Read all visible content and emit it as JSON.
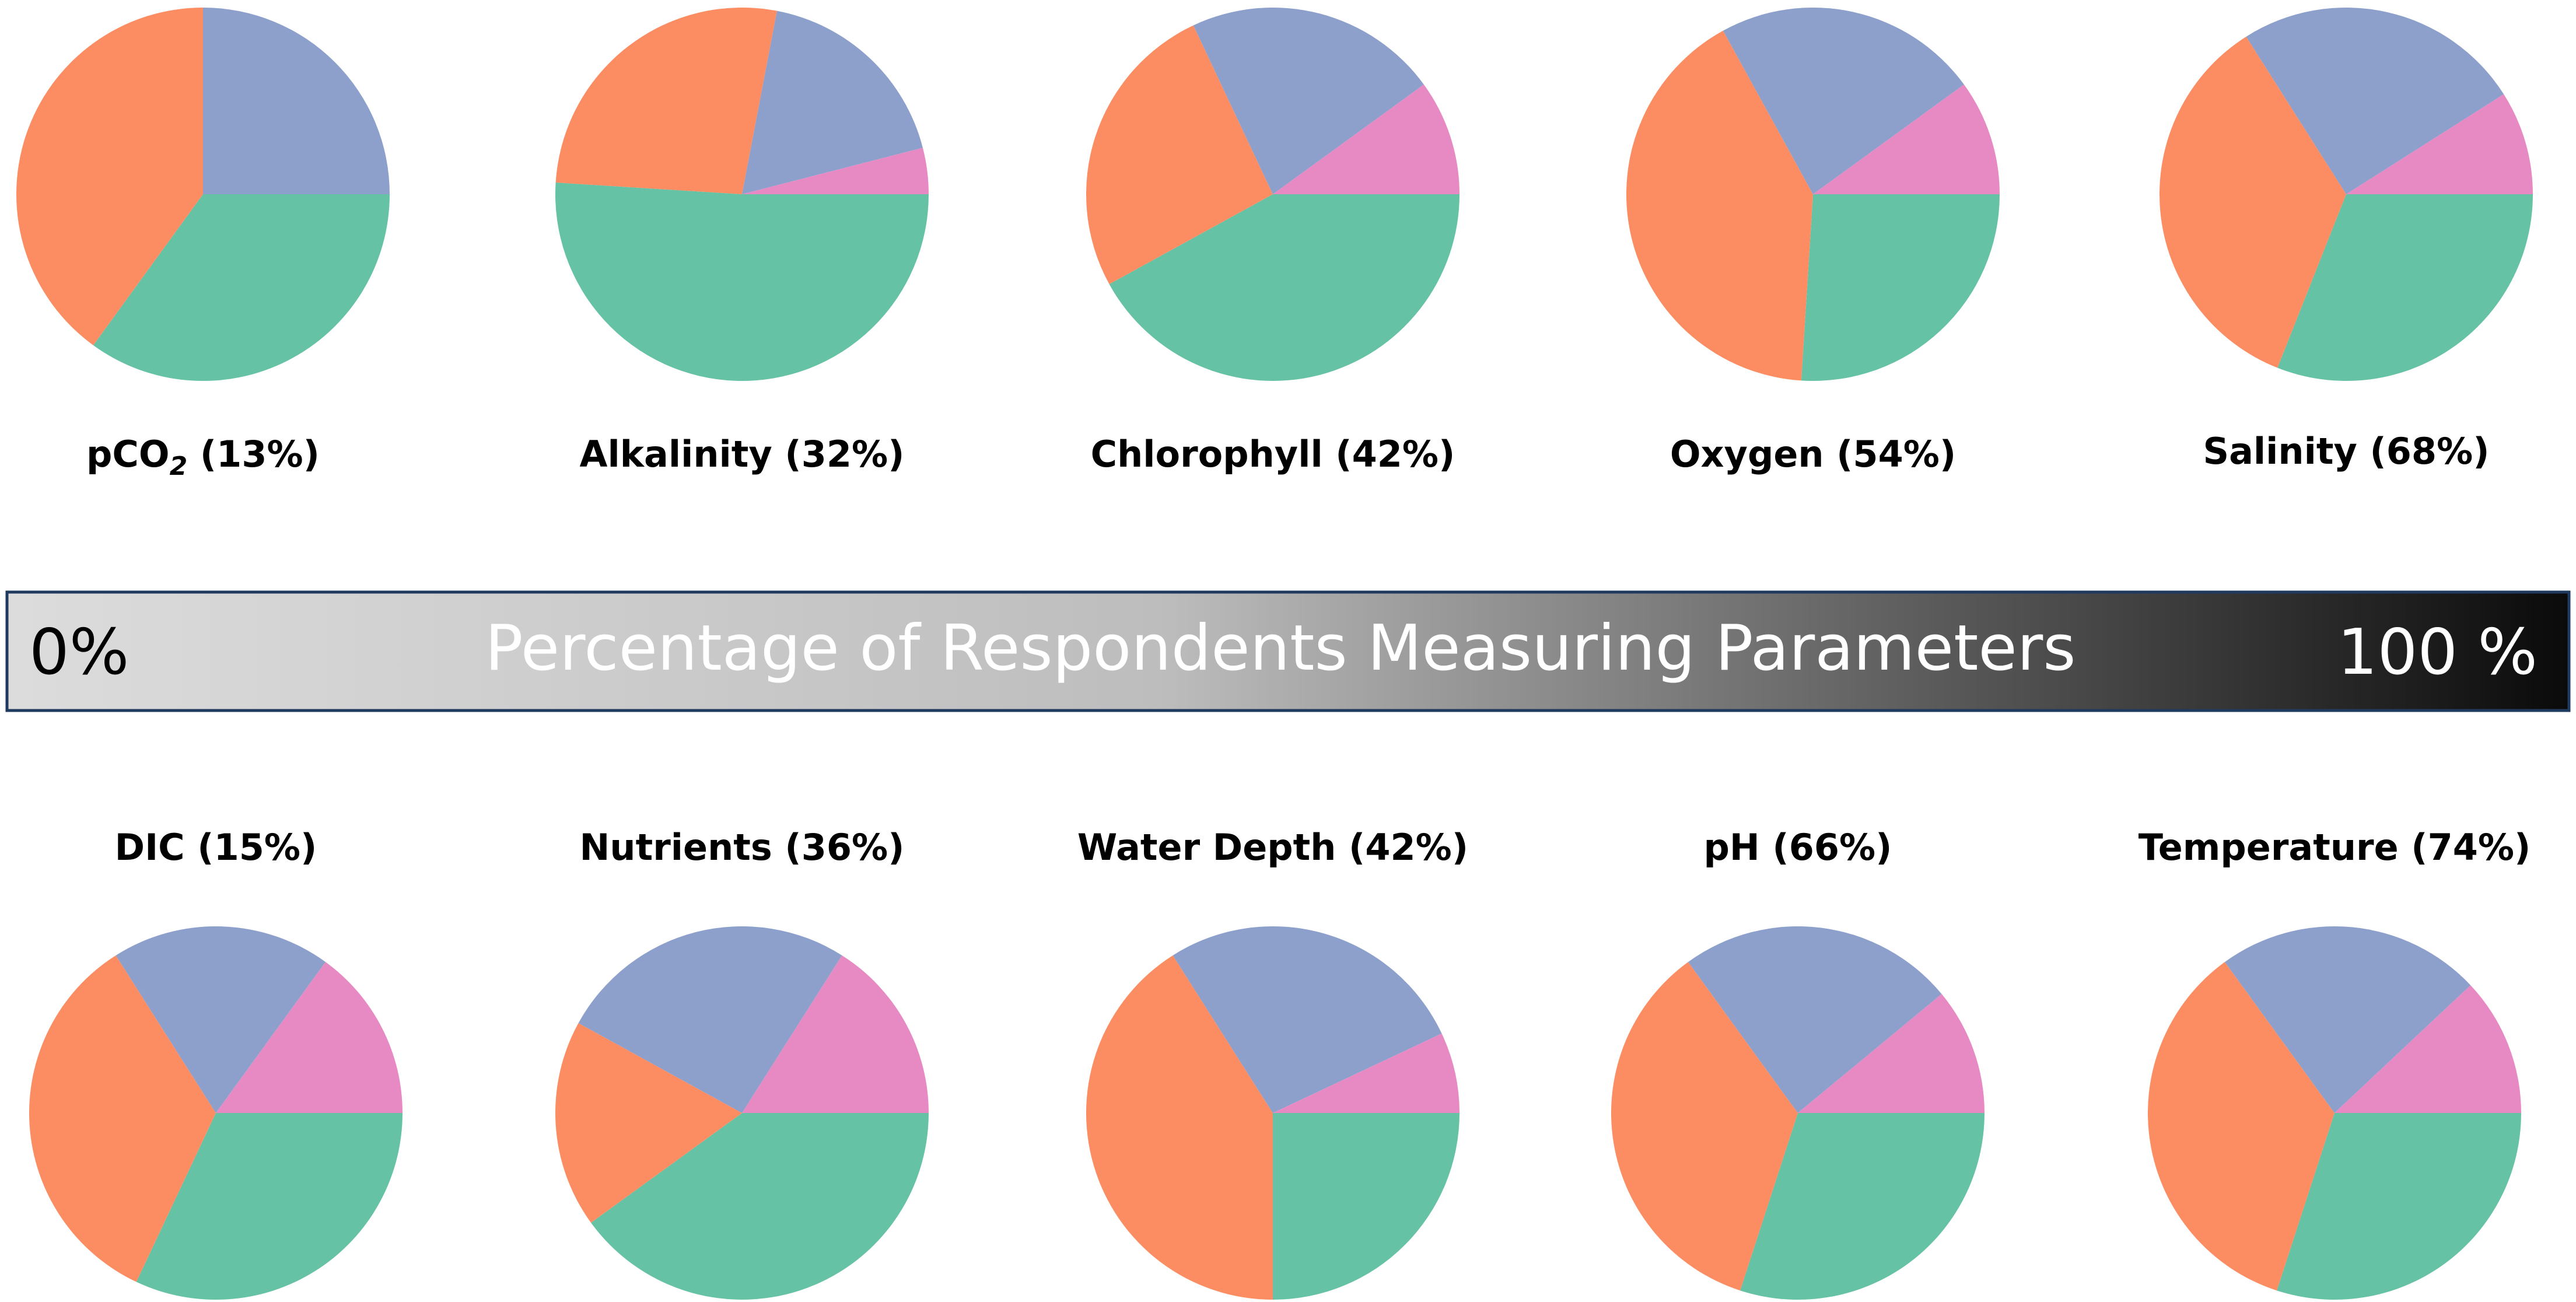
{
  "colorbar": {
    "min_label": "0%",
    "center_label": "Percentage of Respondents Measuring Parameters",
    "max_label": "100 %",
    "gradient_start": "#dcdcdc",
    "gradient_end": "#0a0a0a",
    "border_color": "#1f3a5f"
  },
  "slice_colors": {
    "green": "#66c2a5",
    "orange": "#fc8d62",
    "blue": "#8da0cb",
    "pink": "#e78ac3"
  },
  "chart_data": [
    {
      "type": "pie",
      "title": "pCO₂ (13%)",
      "title_base": "pCO",
      "title_sub": "2",
      "title_suffix": " (13%)",
      "slices": [
        {
          "color": "green",
          "value": 35
        },
        {
          "color": "orange",
          "value": 40
        },
        {
          "color": "blue",
          "value": 25
        },
        {
          "color": "pink",
          "value": 0
        }
      ]
    },
    {
      "type": "pie",
      "title": "Alkalinity (32%)",
      "slices": [
        {
          "color": "green",
          "value": 51
        },
        {
          "color": "orange",
          "value": 27
        },
        {
          "color": "blue",
          "value": 18
        },
        {
          "color": "pink",
          "value": 4
        }
      ]
    },
    {
      "type": "pie",
      "title": "Chlorophyll (42%)",
      "slices": [
        {
          "color": "green",
          "value": 42
        },
        {
          "color": "orange",
          "value": 26
        },
        {
          "color": "blue",
          "value": 22
        },
        {
          "color": "pink",
          "value": 10
        }
      ]
    },
    {
      "type": "pie",
      "title": "Oxygen (54%)",
      "slices": [
        {
          "color": "green",
          "value": 26
        },
        {
          "color": "orange",
          "value": 41
        },
        {
          "color": "blue",
          "value": 23
        },
        {
          "color": "pink",
          "value": 10
        }
      ]
    },
    {
      "type": "pie",
      "title": "Salinity (68%)",
      "slices": [
        {
          "color": "green",
          "value": 31
        },
        {
          "color": "orange",
          "value": 35
        },
        {
          "color": "blue",
          "value": 25
        },
        {
          "color": "pink",
          "value": 9
        }
      ]
    },
    {
      "type": "pie",
      "title": "DIC (15%)",
      "slices": [
        {
          "color": "green",
          "value": 32
        },
        {
          "color": "orange",
          "value": 34
        },
        {
          "color": "blue",
          "value": 19
        },
        {
          "color": "pink",
          "value": 15
        }
      ]
    },
    {
      "type": "pie",
      "title": "Nutrients (36%)",
      "slices": [
        {
          "color": "green",
          "value": 40
        },
        {
          "color": "orange",
          "value": 18
        },
        {
          "color": "blue",
          "value": 26
        },
        {
          "color": "pink",
          "value": 16
        }
      ]
    },
    {
      "type": "pie",
      "title": "Water Depth (42%)",
      "slices": [
        {
          "color": "green",
          "value": 25
        },
        {
          "color": "orange",
          "value": 41
        },
        {
          "color": "blue",
          "value": 27
        },
        {
          "color": "pink",
          "value": 7
        }
      ]
    },
    {
      "type": "pie",
      "title": "pH (66%)",
      "slices": [
        {
          "color": "green",
          "value": 30
        },
        {
          "color": "orange",
          "value": 35
        },
        {
          "color": "blue",
          "value": 24
        },
        {
          "color": "pink",
          "value": 11
        }
      ]
    },
    {
      "type": "pie",
      "title": "Temperature (74%)",
      "slices": [
        {
          "color": "green",
          "value": 30
        },
        {
          "color": "orange",
          "value": 35
        },
        {
          "color": "blue",
          "value": 23
        },
        {
          "color": "pink",
          "value": 12
        }
      ]
    }
  ]
}
